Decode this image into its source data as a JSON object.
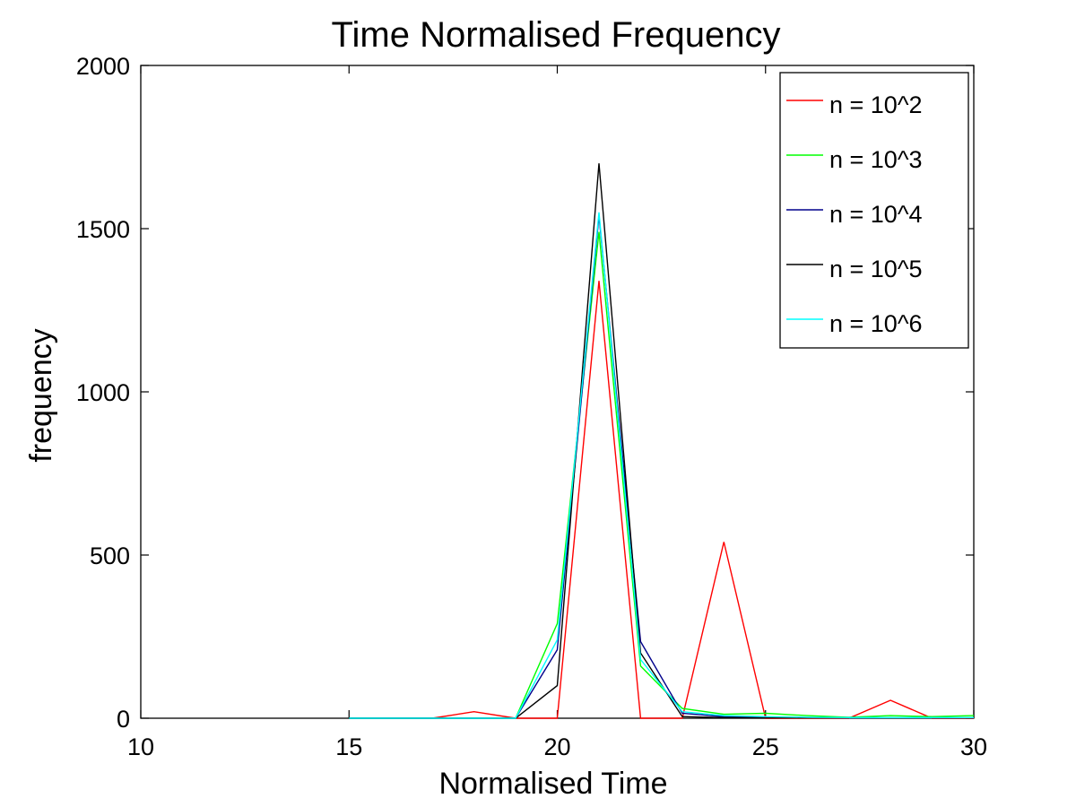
{
  "chart_data": {
    "type": "line",
    "title": "Time Normalised Frequency",
    "xlabel": "Normalised Time",
    "ylabel": "frequency",
    "xlim": [
      10,
      30
    ],
    "ylim": [
      0,
      2000
    ],
    "xticks": [
      10,
      15,
      20,
      25,
      30
    ],
    "yticks": [
      0,
      500,
      1000,
      1500,
      2000
    ],
    "grid": false,
    "legend_position": "top-right",
    "series": [
      {
        "name": "n = 10^2",
        "color": "#ff0000",
        "x": [
          15,
          16,
          17,
          18,
          19,
          20,
          21,
          22,
          23,
          24,
          25,
          26,
          27,
          28,
          29,
          30
        ],
        "y": [
          0,
          0,
          0,
          20,
          0,
          0,
          1340,
          0,
          0,
          540,
          0,
          0,
          0,
          55,
          0,
          0
        ]
      },
      {
        "name": "n = 10^3",
        "color": "#00ff00",
        "x": [
          15,
          16,
          17,
          18,
          19,
          20,
          21,
          22,
          23,
          24,
          25,
          26,
          27,
          28,
          29,
          30
        ],
        "y": [
          0,
          0,
          0,
          0,
          0,
          290,
          1490,
          160,
          30,
          12,
          15,
          8,
          3,
          8,
          5,
          8
        ]
      },
      {
        "name": "n = 10^4",
        "color": "#00008b",
        "x": [
          15,
          16,
          17,
          18,
          19,
          20,
          21,
          22,
          23,
          24,
          25,
          26,
          27,
          28,
          29,
          30
        ],
        "y": [
          0,
          0,
          0,
          0,
          0,
          210,
          1540,
          235,
          15,
          5,
          3,
          2,
          1,
          1,
          1,
          1
        ]
      },
      {
        "name": "n = 10^5",
        "color": "#000000",
        "x": [
          15,
          16,
          17,
          18,
          19,
          20,
          21,
          22,
          23,
          24,
          25,
          26,
          27,
          28,
          29,
          30
        ],
        "y": [
          0,
          0,
          0,
          0,
          0,
          100,
          1700,
          200,
          5,
          2,
          1,
          1,
          1,
          1,
          1,
          1
        ]
      },
      {
        "name": "n = 10^6",
        "color": "#00ffff",
        "x": [
          15,
          16,
          17,
          18,
          19,
          20,
          21,
          22,
          23,
          24,
          25,
          26,
          27,
          28,
          29,
          30
        ],
        "y": [
          0,
          0,
          0,
          0,
          0,
          240,
          1550,
          180,
          20,
          8,
          5,
          3,
          2,
          2,
          2,
          2
        ]
      }
    ]
  }
}
